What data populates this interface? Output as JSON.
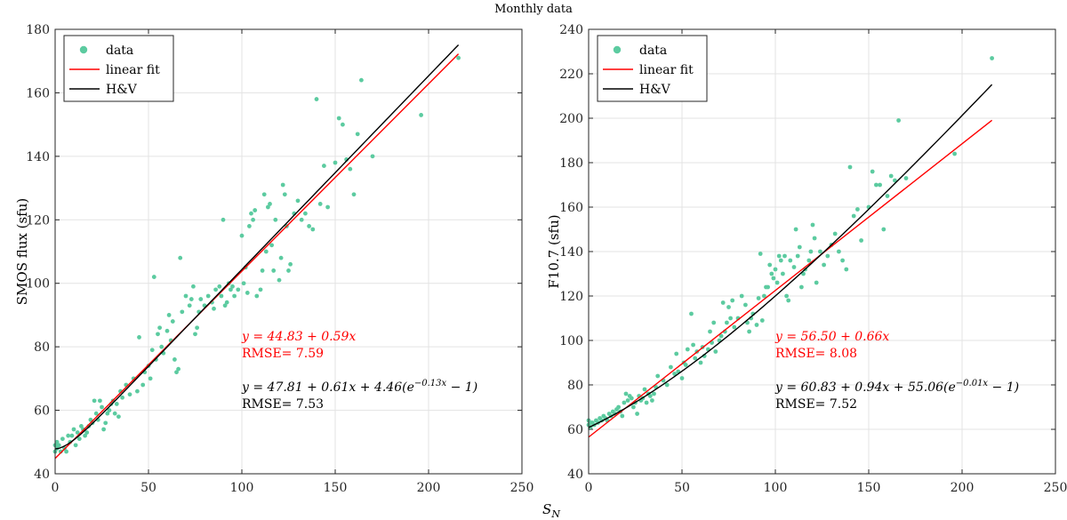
{
  "figure": {
    "title": "Monthly data",
    "shared_xlabel": "S",
    "shared_xlabel_sub": "N"
  },
  "chart_data": [
    {
      "type": "scatter",
      "xlabel": "S_N",
      "ylabel": "SMOS flux (sfu)",
      "xlim": [
        0,
        250
      ],
      "ylim": [
        40,
        180
      ],
      "xticks": [
        0,
        50,
        100,
        150,
        200,
        250
      ],
      "yticks": [
        40,
        60,
        80,
        100,
        120,
        140,
        160,
        180
      ],
      "grid": true,
      "legend": {
        "placement": "top-left",
        "entries": [
          {
            "label": "data",
            "kind": "marker",
            "color": "#5ccba0"
          },
          {
            "label": "linear fit",
            "kind": "line",
            "color": "#ff0000"
          },
          {
            "label": "H&V",
            "kind": "line",
            "color": "#000000"
          }
        ]
      },
      "scatter_color": "#5ccba0",
      "points": [
        [
          0,
          49
        ],
        [
          0,
          47
        ],
        [
          1,
          48
        ],
        [
          1,
          50
        ],
        [
          2,
          49
        ],
        [
          3,
          47
        ],
        [
          4,
          51
        ],
        [
          5,
          48
        ],
        [
          6,
          47
        ],
        [
          7,
          52
        ],
        [
          8,
          50
        ],
        [
          9,
          52
        ],
        [
          10,
          54
        ],
        [
          11,
          49
        ],
        [
          12,
          53
        ],
        [
          13,
          51
        ],
        [
          14,
          55
        ],
        [
          15,
          54
        ],
        [
          16,
          52
        ],
        [
          17,
          53
        ],
        [
          18,
          55
        ],
        [
          19,
          57
        ],
        [
          20,
          56
        ],
        [
          21,
          63
        ],
        [
          22,
          59
        ],
        [
          23,
          57
        ],
        [
          24,
          63
        ],
        [
          25,
          61
        ],
        [
          26,
          54
        ],
        [
          27,
          56
        ],
        [
          28,
          59
        ],
        [
          29,
          60
        ],
        [
          30,
          62
        ],
        [
          31,
          63
        ],
        [
          32,
          59
        ],
        [
          33,
          62
        ],
        [
          34,
          58
        ],
        [
          35,
          66
        ],
        [
          36,
          64
        ],
        [
          38,
          68
        ],
        [
          40,
          65
        ],
        [
          42,
          70
        ],
        [
          44,
          66
        ],
        [
          45,
          83
        ],
        [
          47,
          68
        ],
        [
          48,
          72
        ],
        [
          50,
          74
        ],
        [
          51,
          70
        ],
        [
          52,
          79
        ],
        [
          53,
          102
        ],
        [
          54,
          76
        ],
        [
          55,
          84
        ],
        [
          56,
          86
        ],
        [
          57,
          80
        ],
        [
          58,
          78
        ],
        [
          60,
          85
        ],
        [
          61,
          90
        ],
        [
          62,
          82
        ],
        [
          63,
          88
        ],
        [
          64,
          76
        ],
        [
          65,
          72
        ],
        [
          66,
          73
        ],
        [
          67,
          108
        ],
        [
          68,
          91
        ],
        [
          70,
          96
        ],
        [
          72,
          93
        ],
        [
          73,
          95
        ],
        [
          74,
          99
        ],
        [
          75,
          84
        ],
        [
          76,
          86
        ],
        [
          77,
          91
        ],
        [
          78,
          95
        ],
        [
          80,
          93
        ],
        [
          82,
          96
        ],
        [
          84,
          94
        ],
        [
          85,
          92
        ],
        [
          86,
          98
        ],
        [
          88,
          99
        ],
        [
          89,
          96
        ],
        [
          90,
          120
        ],
        [
          91,
          93
        ],
        [
          92,
          94
        ],
        [
          93,
          100
        ],
        [
          94,
          98
        ],
        [
          95,
          99
        ],
        [
          96,
          96
        ],
        [
          98,
          98
        ],
        [
          100,
          115
        ],
        [
          101,
          100
        ],
        [
          102,
          105
        ],
        [
          103,
          97
        ],
        [
          104,
          118
        ],
        [
          105,
          122
        ],
        [
          106,
          120
        ],
        [
          107,
          123
        ],
        [
          108,
          96
        ],
        [
          110,
          98
        ],
        [
          111,
          104
        ],
        [
          112,
          128
        ],
        [
          113,
          110
        ],
        [
          114,
          124
        ],
        [
          115,
          125
        ],
        [
          116,
          112
        ],
        [
          117,
          104
        ],
        [
          118,
          120
        ],
        [
          120,
          101
        ],
        [
          121,
          108
        ],
        [
          122,
          131
        ],
        [
          123,
          128
        ],
        [
          124,
          118
        ],
        [
          125,
          104
        ],
        [
          126,
          106
        ],
        [
          128,
          122
        ],
        [
          130,
          126
        ],
        [
          132,
          120
        ],
        [
          134,
          122
        ],
        [
          136,
          118
        ],
        [
          138,
          117
        ],
        [
          140,
          158
        ],
        [
          142,
          125
        ],
        [
          144,
          137
        ],
        [
          146,
          124
        ],
        [
          150,
          138
        ],
        [
          152,
          152
        ],
        [
          154,
          150
        ],
        [
          156,
          139
        ],
        [
          158,
          136
        ],
        [
          160,
          128
        ],
        [
          162,
          147
        ],
        [
          164,
          164
        ],
        [
          170,
          140
        ],
        [
          196,
          153
        ],
        [
          216,
          171
        ]
      ],
      "linear_fit": {
        "intercept": 44.83,
        "slope": 0.59,
        "x_range": [
          0,
          216
        ],
        "color": "#ff0000"
      },
      "hv_fit": {
        "a": 47.81,
        "b": 0.61,
        "c": 4.46,
        "k": 0.13,
        "x_range": [
          0,
          216
        ],
        "color": "#000000"
      },
      "annotations": {
        "linear_eq": "y = 44.83 + 0.59x",
        "linear_rmse": "RMSE= 7.59",
        "hv_eq_prefix": "y = 47.81 + 0.61x + 4.46(e",
        "hv_eq_exp": "−0.13x",
        "hv_eq_suffix": " − 1)",
        "hv_rmse": "RMSE= 7.53"
      }
    },
    {
      "type": "scatter",
      "xlabel": "S_N",
      "ylabel": "F10.7 (sfu)",
      "xlim": [
        0,
        250
      ],
      "ylim": [
        40,
        240
      ],
      "xticks": [
        0,
        50,
        100,
        150,
        200,
        250
      ],
      "yticks": [
        40,
        60,
        80,
        100,
        120,
        140,
        160,
        180,
        200,
        220,
        240
      ],
      "grid": true,
      "legend": {
        "placement": "top-left",
        "entries": [
          {
            "label": "data",
            "kind": "marker",
            "color": "#5ccba0"
          },
          {
            "label": "linear fit",
            "kind": "line",
            "color": "#ff0000"
          },
          {
            "label": "H&V",
            "kind": "line",
            "color": "#000000"
          }
        ]
      },
      "scatter_color": "#5ccba0",
      "points": [
        [
          0,
          62
        ],
        [
          0,
          64
        ],
        [
          1,
          63
        ],
        [
          1,
          61
        ],
        [
          2,
          63
        ],
        [
          3,
          62
        ],
        [
          4,
          64
        ],
        [
          5,
          63
        ],
        [
          6,
          65
        ],
        [
          7,
          64
        ],
        [
          8,
          66
        ],
        [
          9,
          65
        ],
        [
          10,
          64
        ],
        [
          11,
          67
        ],
        [
          12,
          66
        ],
        [
          13,
          68
        ],
        [
          14,
          67
        ],
        [
          15,
          69
        ],
        [
          16,
          70
        ],
        [
          17,
          68
        ],
        [
          18,
          66
        ],
        [
          19,
          72
        ],
        [
          20,
          76
        ],
        [
          21,
          73
        ],
        [
          22,
          75
        ],
        [
          23,
          74
        ],
        [
          24,
          70
        ],
        [
          25,
          72
        ],
        [
          26,
          67
        ],
        [
          27,
          75
        ],
        [
          28,
          73
        ],
        [
          29,
          74
        ],
        [
          30,
          78
        ],
        [
          31,
          72
        ],
        [
          32,
          76
        ],
        [
          33,
          75
        ],
        [
          34,
          73
        ],
        [
          35,
          76
        ],
        [
          36,
          79
        ],
        [
          37,
          84
        ],
        [
          40,
          82
        ],
        [
          42,
          80
        ],
        [
          44,
          88
        ],
        [
          46,
          85
        ],
        [
          47,
          94
        ],
        [
          48,
          86
        ],
        [
          50,
          83
        ],
        [
          51,
          90
        ],
        [
          52,
          89
        ],
        [
          53,
          96
        ],
        [
          55,
          112
        ],
        [
          56,
          98
        ],
        [
          57,
          92
        ],
        [
          58,
          95
        ],
        [
          60,
          90
        ],
        [
          61,
          97
        ],
        [
          62,
          93
        ],
        [
          64,
          96
        ],
        [
          65,
          104
        ],
        [
          66,
          99
        ],
        [
          67,
          108
        ],
        [
          68,
          95
        ],
        [
          70,
          100
        ],
        [
          71,
          102
        ],
        [
          72,
          117
        ],
        [
          73,
          104
        ],
        [
          74,
          108
        ],
        [
          75,
          115
        ],
        [
          76,
          110
        ],
        [
          77,
          118
        ],
        [
          78,
          106
        ],
        [
          80,
          110
        ],
        [
          82,
          120
        ],
        [
          84,
          116
        ],
        [
          85,
          108
        ],
        [
          86,
          104
        ],
        [
          87,
          110
        ],
        [
          88,
          112
        ],
        [
          90,
          107
        ],
        [
          91,
          119
        ],
        [
          92,
          139
        ],
        [
          93,
          109
        ],
        [
          94,
          120
        ],
        [
          95,
          124
        ],
        [
          96,
          124
        ],
        [
          97,
          134
        ],
        [
          98,
          130
        ],
        [
          99,
          128
        ],
        [
          100,
          132
        ],
        [
          101,
          126
        ],
        [
          102,
          138
        ],
        [
          103,
          136
        ],
        [
          104,
          130
        ],
        [
          105,
          138
        ],
        [
          106,
          120
        ],
        [
          107,
          118
        ],
        [
          108,
          136
        ],
        [
          110,
          133
        ],
        [
          111,
          150
        ],
        [
          112,
          138
        ],
        [
          113,
          142
        ],
        [
          114,
          124
        ],
        [
          115,
          130
        ],
        [
          116,
          132
        ],
        [
          118,
          136
        ],
        [
          119,
          140
        ],
        [
          120,
          152
        ],
        [
          121,
          146
        ],
        [
          122,
          126
        ],
        [
          124,
          140
        ],
        [
          126,
          134
        ],
        [
          128,
          138
        ],
        [
          130,
          143
        ],
        [
          132,
          148
        ],
        [
          134,
          140
        ],
        [
          136,
          136
        ],
        [
          138,
          132
        ],
        [
          140,
          178
        ],
        [
          142,
          156
        ],
        [
          144,
          159
        ],
        [
          146,
          145
        ],
        [
          150,
          160
        ],
        [
          152,
          176
        ],
        [
          154,
          170
        ],
        [
          156,
          170
        ],
        [
          158,
          150
        ],
        [
          160,
          165
        ],
        [
          162,
          174
        ],
        [
          164,
          172
        ],
        [
          166,
          199
        ],
        [
          170,
          173
        ],
        [
          196,
          184
        ],
        [
          216,
          227
        ]
      ],
      "linear_fit": {
        "intercept": 56.5,
        "slope": 0.66,
        "x_range": [
          0,
          216
        ],
        "color": "#ff0000"
      },
      "hv_fit": {
        "a": 60.83,
        "b": 0.94,
        "c": 55.06,
        "k": 0.01,
        "x_range": [
          0,
          216
        ],
        "color": "#000000"
      },
      "annotations": {
        "linear_eq": "y = 56.50 + 0.66x",
        "linear_rmse": "RMSE= 8.08",
        "hv_eq_prefix": "y = 60.83 + 0.94x + 55.06(e",
        "hv_eq_exp": "−0.01x",
        "hv_eq_suffix": " − 1)",
        "hv_rmse": "RMSE= 7.52"
      }
    }
  ]
}
